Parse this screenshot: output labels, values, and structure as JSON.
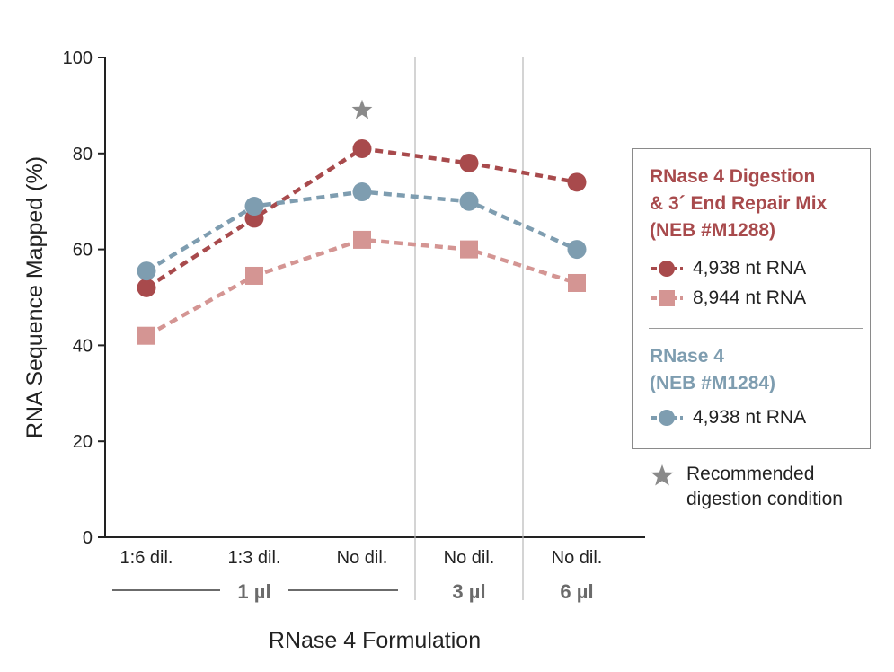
{
  "chart_data": {
    "type": "line",
    "xlabel": "RNase 4 Formulation",
    "ylabel": "RNA Sequence Mapped  (%)",
    "ylim": [
      0,
      100
    ],
    "yticks": [
      0,
      20,
      40,
      60,
      80,
      100
    ],
    "categories": [
      "1:6 dil.",
      "1:3 dil.",
      "No dil.",
      "No dil.",
      "No dil."
    ],
    "groups": [
      {
        "label": "1 µl",
        "span": [
          0,
          2
        ]
      },
      {
        "label": "3 µl",
        "span": [
          3,
          3
        ]
      },
      {
        "label": "6 µl",
        "span": [
          4,
          4
        ]
      }
    ],
    "grid": false,
    "legend_position": "right",
    "series": [
      {
        "name": "4,938 nt RNA",
        "group": "RNase 4 Digestion & 3´ End Repair Mix (NEB #M1288)",
        "marker": "circle",
        "color": "#a84a4c",
        "values": [
          52,
          66.5,
          81,
          78,
          74
        ]
      },
      {
        "name": "8,944 nt RNA",
        "group": "RNase 4 Digestion & 3´ End Repair Mix (NEB #M1288)",
        "marker": "square",
        "color": "#d49593",
        "values": [
          42,
          54.5,
          62,
          60,
          53
        ]
      },
      {
        "name": "4,938 nt RNA",
        "group": "RNase 4 (NEB #M1284)",
        "marker": "circle",
        "color": "#7e9db0",
        "values": [
          55.5,
          69,
          72,
          70,
          60
        ]
      }
    ],
    "annotations": [
      {
        "type": "star",
        "category_index": 2,
        "y": 89,
        "color": "#8a8a8a",
        "meaning": "Recommended digestion condition"
      }
    ]
  },
  "legend": {
    "heading_red": "RNase 4 Digestion & 3´ End Repair Mix (NEB #M1288)",
    "red_line1": "RNase 4 Digestion",
    "red_line2": "& 3´ End Repair Mix",
    "red_line3": "(NEB #M1288)",
    "entry_red_circle": "4,938 nt RNA",
    "entry_red_square": "8,944 nt RNA",
    "blue_line1": "RNase 4",
    "blue_line2": "(NEB #M1284)",
    "entry_blue_circle": "4,938 nt RNA",
    "recommended_line1": "Recommended",
    "recommended_line2": "digestion condition"
  },
  "colors": {
    "red": "#a84a4c",
    "pink": "#d49593",
    "blue": "#7e9db0",
    "star": "#8a8a8a"
  }
}
